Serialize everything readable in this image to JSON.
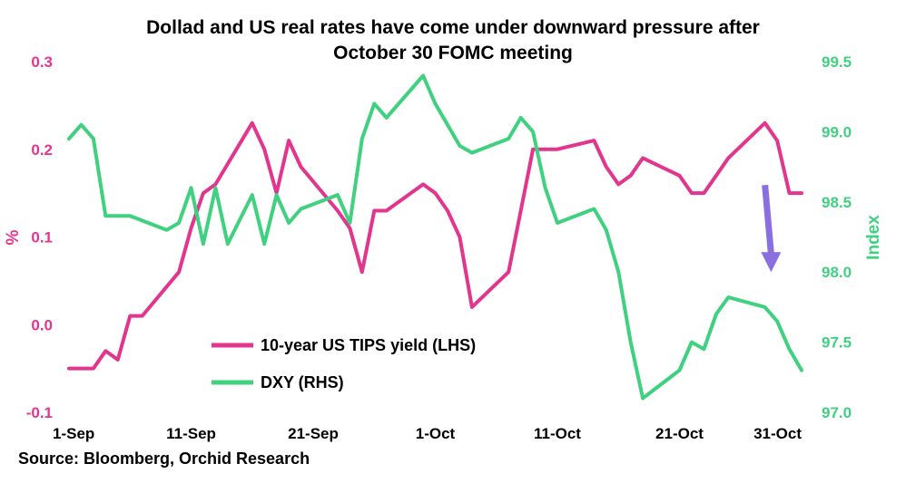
{
  "chart_data": {
    "type": "line",
    "title_lines": [
      "Dollad and US real rates have come under downward pressure after",
      "October 30 FOMC meeting"
    ],
    "x_tick_labels": [
      "1-Sep",
      "11-Sep",
      "21-Sep",
      "1-Oct",
      "11-Oct",
      "21-Oct",
      "31-Oct"
    ],
    "x_range_day": [
      1,
      61
    ],
    "y_left": {
      "label": "%",
      "range": [
        -0.1,
        0.3
      ],
      "ticks": [
        "-0.1",
        "0.0",
        "0.1",
        "0.2",
        "0.3"
      ],
      "color": "#e2358e"
    },
    "y_right": {
      "label": "Index",
      "range": [
        97.0,
        99.5
      ],
      "ticks": [
        "97.0",
        "97.5",
        "98.0",
        "98.5",
        "99.0",
        "99.5"
      ],
      "color": "#3fd17f"
    },
    "series": [
      {
        "name": "10-year US TIPS yield (LHS)",
        "axis": "left",
        "color": "#e2358e",
        "x": [
          1,
          2,
          3,
          4,
          5,
          6,
          7,
          10,
          11,
          12,
          13,
          16,
          17,
          18,
          19,
          20,
          23,
          24,
          25,
          26,
          27,
          30,
          31,
          32,
          33,
          34,
          37,
          38,
          39,
          40,
          41,
          44,
          45,
          46,
          47,
          48,
          51,
          52,
          53,
          54,
          55,
          58,
          59,
          60,
          61
        ],
        "values": [
          -0.05,
          -0.05,
          -0.05,
          -0.03,
          -0.04,
          0.01,
          0.01,
          0.06,
          0.11,
          0.15,
          0.16,
          0.23,
          0.2,
          0.15,
          0.21,
          0.18,
          0.13,
          0.11,
          0.06,
          0.13,
          0.13,
          0.16,
          0.15,
          0.13,
          0.1,
          0.02,
          0.06,
          0.13,
          0.2,
          0.2,
          0.2,
          0.21,
          0.18,
          0.16,
          0.17,
          0.19,
          0.17,
          0.15,
          0.15,
          0.17,
          0.19,
          0.23,
          0.21,
          0.15,
          0.15
        ]
      },
      {
        "name": "DXY (RHS)",
        "axis": "right",
        "color": "#3fd17f",
        "x": [
          1,
          2,
          3,
          4,
          5,
          6,
          9,
          10,
          11,
          12,
          13,
          14,
          16,
          17,
          18,
          19,
          20,
          23,
          24,
          25,
          26,
          27,
          30,
          31,
          32,
          33,
          34,
          37,
          38,
          39,
          40,
          41,
          44,
          45,
          46,
          47,
          48,
          51,
          52,
          53,
          54,
          55,
          58,
          59,
          60,
          61
        ],
        "values": [
          98.95,
          99.05,
          98.95,
          98.4,
          98.4,
          98.4,
          98.3,
          98.35,
          98.6,
          98.2,
          98.6,
          98.2,
          98.55,
          98.2,
          98.55,
          98.35,
          98.45,
          98.55,
          98.35,
          98.95,
          99.2,
          99.1,
          99.4,
          99.2,
          99.05,
          98.9,
          98.85,
          98.95,
          99.1,
          99.0,
          98.6,
          98.35,
          98.45,
          98.3,
          98.0,
          97.5,
          97.1,
          97.3,
          97.5,
          97.45,
          97.7,
          97.82,
          97.75,
          97.65,
          97.45,
          97.3
        ]
      }
    ],
    "legend": [
      {
        "label": "10-year US TIPS yield (LHS)",
        "color": "#e2358e"
      },
      {
        "label": "DXY (RHS)",
        "color": "#3fd17f"
      }
    ],
    "annotation": {
      "type": "arrow",
      "color": "#8a6fe0",
      "from": {
        "x": 58,
        "y_right": 98.62
      },
      "to": {
        "x": 58.5,
        "y_right": 98.0
      }
    },
    "grid": false,
    "source": "Source: Bloomberg, Orchid Research"
  }
}
